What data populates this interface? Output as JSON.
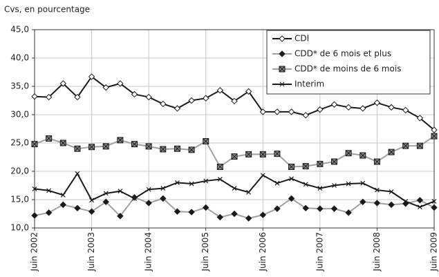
{
  "chart_data": {
    "type": "line",
    "subtitle": "Cvs, en pourcentage",
    "categories": [
      "Juin 2002",
      null,
      null,
      null,
      "Juin 2003",
      null,
      null,
      null,
      "Juin 2004",
      null,
      null,
      null,
      "Juin 2005",
      null,
      null,
      null,
      "Juin 2006",
      null,
      null,
      null,
      "Juin 2007",
      null,
      null,
      null,
      "Juin 2008",
      null,
      null,
      null,
      "Juin 2009"
    ],
    "series": [
      {
        "name": "CDI",
        "color": "#1a1a1a",
        "marker": "diamond-open",
        "values": [
          33.2,
          33.1,
          35.5,
          33.1,
          36.7,
          34.8,
          35.5,
          33.6,
          33.1,
          31.9,
          31.1,
          32.5,
          32.9,
          34.3,
          32.4,
          34.1,
          30.5,
          30.5,
          30.5,
          29.9,
          30.9,
          31.8,
          31.3,
          31.1,
          32.1,
          31.3,
          30.8,
          29.4,
          27.3
        ]
      },
      {
        "name": "CDD* de 6 mois et plus",
        "color": "#a0a0a0",
        "marker": "diamond-filled",
        "values": [
          12.2,
          12.7,
          14.1,
          13.5,
          12.9,
          14.6,
          12.1,
          15.4,
          14.4,
          15.2,
          12.9,
          12.8,
          13.6,
          11.9,
          12.5,
          11.7,
          12.3,
          13.4,
          15.2,
          13.5,
          13.4,
          13.4,
          12.7,
          14.6,
          14.4,
          14.1,
          14.3,
          14.9,
          13.6
        ]
      },
      {
        "name": "CDD* de moins de 6 mois",
        "color": "#a0a0a0",
        "marker": "square-x",
        "values": [
          24.8,
          25.8,
          25.0,
          24.0,
          24.3,
          24.4,
          25.5,
          24.8,
          24.4,
          23.9,
          24.0,
          23.8,
          25.3,
          20.8,
          22.6,
          23.0,
          23.0,
          23.1,
          20.8,
          20.9,
          21.3,
          21.7,
          23.2,
          22.8,
          21.7,
          23.4,
          24.5,
          24.5,
          26.2
        ]
      },
      {
        "name": "Interim",
        "color": "#1a1a1a",
        "marker": "x",
        "values": [
          16.9,
          16.6,
          15.8,
          19.6,
          14.9,
          16.1,
          16.5,
          15.2,
          16.8,
          17.0,
          18.0,
          17.8,
          18.3,
          18.6,
          17.0,
          16.3,
          19.3,
          17.9,
          18.7,
          17.7,
          17.0,
          17.5,
          17.8,
          17.9,
          16.7,
          16.4,
          14.7,
          13.7,
          14.7
        ]
      }
    ],
    "ylim": [
      10,
      45
    ],
    "yticks": [
      {
        "value": 10,
        "label": "10,0"
      },
      {
        "value": 15,
        "label": "15,0"
      },
      {
        "value": 20,
        "label": "20,0"
      },
      {
        "value": 25,
        "label": "25,0"
      },
      {
        "value": 30,
        "label": "30,0"
      },
      {
        "value": 35,
        "label": "35,0"
      },
      {
        "value": 40,
        "label": "40,0"
      },
      {
        "value": 45,
        "label": "45,0"
      }
    ],
    "grid": true,
    "legend": "upper right"
  }
}
